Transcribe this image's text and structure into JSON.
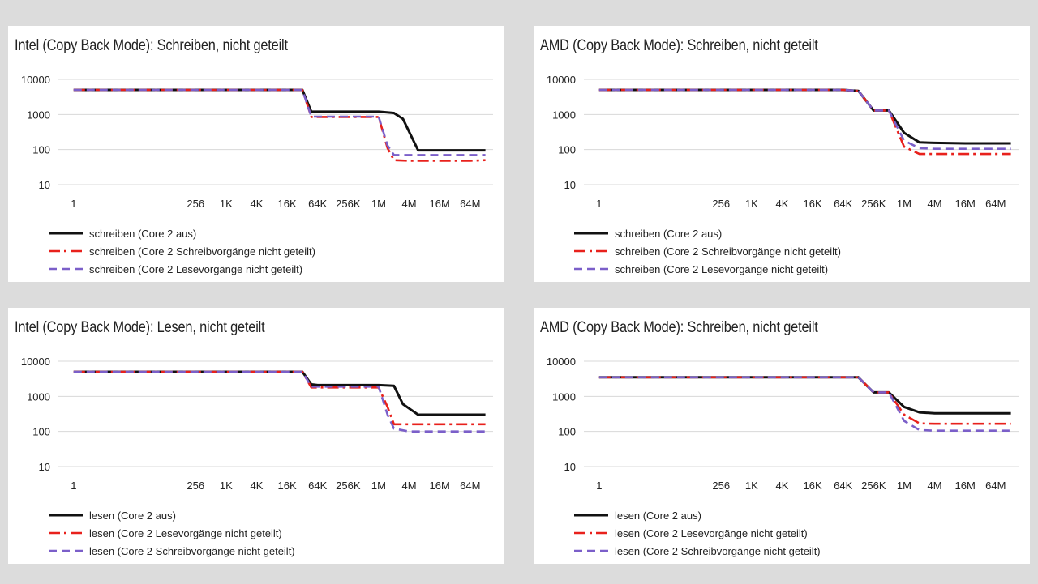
{
  "colors": {
    "series1": "#111111",
    "series2": "#e8211c",
    "series3": "#7b5fc9",
    "grid": "#d8d8d8"
  },
  "chart_data": [
    {
      "type": "line",
      "title": "Intel (Copy Back Mode): Schreiben, nicht geteilt",
      "y_scale": "log",
      "ylim": [
        10,
        10000
      ],
      "y_ticks": [
        "10000",
        "1000",
        "100",
        "10"
      ],
      "x_ticks": [
        "1",
        "256",
        "1K",
        "4K",
        "16K",
        "64K",
        "256K",
        "1M",
        "4M",
        "16M",
        "64M"
      ],
      "grid": "horizontal",
      "legend_position": "bottom",
      "series": [
        {
          "name": "schreiben (Core 2 aus)",
          "style": "solid",
          "x": [
            "1",
            "256",
            "1K",
            "4K",
            "16K",
            "32K",
            "48K",
            "64K",
            "256K",
            "1M",
            "2M",
            "3M",
            "6M",
            "16M",
            "64M",
            "128M"
          ],
          "values": [
            5000,
            5000,
            5000,
            5000,
            5000,
            5000,
            1200,
            1200,
            1200,
            1200,
            1100,
            750,
            95,
            95,
            95,
            95
          ]
        },
        {
          "name": "schreiben (Core 2 Schreibvorgänge nicht geteilt)",
          "style": "dashdot",
          "x": [
            "1",
            "256",
            "1K",
            "4K",
            "16K",
            "32K",
            "48K",
            "64K",
            "256K",
            "1M",
            "1.5M",
            "2M",
            "4M",
            "16M",
            "64M",
            "128M"
          ],
          "values": [
            5000,
            5000,
            5000,
            5000,
            5000,
            5000,
            850,
            850,
            850,
            850,
            110,
            50,
            48,
            48,
            48,
            50
          ]
        },
        {
          "name": "schreiben (Core 2 Lesevorgänge nicht geteilt)",
          "style": "dashed",
          "x": [
            "1",
            "256",
            "1K",
            "4K",
            "16K",
            "32K",
            "48K",
            "64K",
            "256K",
            "1M",
            "1.5M",
            "2M",
            "4M",
            "16M",
            "64M",
            "128M"
          ],
          "values": [
            5000,
            5000,
            5000,
            5000,
            5000,
            5000,
            870,
            870,
            870,
            870,
            130,
            70,
            70,
            70,
            70,
            70
          ]
        }
      ]
    },
    {
      "type": "line",
      "title": "AMD (Copy Back Mode): Schreiben, nicht geteilt",
      "y_scale": "log",
      "ylim": [
        10,
        10000
      ],
      "y_ticks": [
        "10000",
        "1000",
        "100",
        "10"
      ],
      "x_ticks": [
        "1",
        "256",
        "1K",
        "4K",
        "16K",
        "64K",
        "256K",
        "1M",
        "4M",
        "16M",
        "64M"
      ],
      "grid": "horizontal",
      "legend_position": "bottom",
      "series": [
        {
          "name": "schreiben (Core 2 aus)",
          "style": "solid",
          "x": [
            "1",
            "256",
            "1K",
            "4K",
            "16K",
            "64K",
            "128K",
            "256K",
            "512K",
            "1M",
            "2M",
            "4M",
            "16M",
            "64M",
            "128M"
          ],
          "values": [
            5000,
            5000,
            5000,
            5000,
            5000,
            5000,
            4700,
            1300,
            1300,
            300,
            160,
            155,
            150,
            150,
            150
          ]
        },
        {
          "name": "schreiben (Core 2 Schreibvorgänge nicht geteilt)",
          "style": "dashdot",
          "x": [
            "1",
            "256",
            "1K",
            "4K",
            "16K",
            "64K",
            "128K",
            "256K",
            "512K",
            "1M",
            "2M",
            "4M",
            "16M",
            "64M",
            "128M"
          ],
          "values": [
            5000,
            5000,
            5000,
            5000,
            5000,
            5000,
            4700,
            1300,
            1300,
            120,
            75,
            75,
            75,
            75,
            75
          ]
        },
        {
          "name": "schreiben (Core 2 Lesevorgänge nicht geteilt)",
          "style": "dashed",
          "x": [
            "1",
            "256",
            "1K",
            "4K",
            "16K",
            "64K",
            "128K",
            "256K",
            "512K",
            "1M",
            "2M",
            "4M",
            "16M",
            "64M",
            "128M"
          ],
          "values": [
            5000,
            5000,
            5000,
            5000,
            5000,
            5000,
            4700,
            1300,
            1300,
            180,
            110,
            105,
            105,
            105,
            105
          ]
        }
      ]
    },
    {
      "type": "line",
      "title": "Intel (Copy Back Mode): Lesen, nicht geteilt",
      "y_scale": "log",
      "ylim": [
        10,
        10000
      ],
      "y_ticks": [
        "10000",
        "1000",
        "100",
        "10"
      ],
      "x_ticks": [
        "1",
        "256",
        "1K",
        "4K",
        "16K",
        "64K",
        "256K",
        "1M",
        "4M",
        "16M",
        "64M"
      ],
      "grid": "horizontal",
      "legend_position": "bottom",
      "series": [
        {
          "name": "lesen (Core 2 aus)",
          "style": "solid",
          "x": [
            "1",
            "256",
            "1K",
            "4K",
            "16K",
            "32K",
            "48K",
            "64K",
            "256K",
            "1M",
            "2M",
            "3M",
            "6M",
            "16M",
            "64M",
            "128M"
          ],
          "values": [
            5000,
            5000,
            5000,
            5000,
            5000,
            5000,
            2200,
            2100,
            2100,
            2100,
            2000,
            600,
            300,
            300,
            300,
            300
          ]
        },
        {
          "name": "lesen (Core 2 Lesevorgänge nicht geteilt)",
          "style": "dashdot",
          "x": [
            "1",
            "256",
            "1K",
            "4K",
            "16K",
            "32K",
            "48K",
            "64K",
            "256K",
            "1M",
            "1.5M",
            "2M",
            "4M",
            "16M",
            "64M",
            "128M"
          ],
          "values": [
            5000,
            5000,
            5000,
            5000,
            5000,
            5000,
            1800,
            1800,
            1800,
            1800,
            500,
            160,
            160,
            160,
            160,
            160
          ]
        },
        {
          "name": "lesen (Core 2 Schreibvorgänge nicht geteilt)",
          "style": "dashed",
          "x": [
            "1",
            "256",
            "1K",
            "4K",
            "16K",
            "32K",
            "48K",
            "64K",
            "256K",
            "1M",
            "1.5M",
            "2M",
            "4M",
            "16M",
            "64M",
            "128M"
          ],
          "values": [
            5000,
            5000,
            5000,
            5000,
            5000,
            5000,
            1900,
            1900,
            1900,
            1900,
            300,
            120,
            100,
            100,
            100,
            100
          ]
        }
      ]
    },
    {
      "type": "line",
      "title": "AMD (Copy Back Mode): Schreiben, nicht geteilt",
      "y_scale": "log",
      "ylim": [
        10,
        10000
      ],
      "y_ticks": [
        "10000",
        "1000",
        "100",
        "10"
      ],
      "x_ticks": [
        "1",
        "256",
        "1K",
        "4K",
        "16K",
        "64K",
        "256K",
        "1M",
        "4M",
        "16M",
        "64M"
      ],
      "grid": "horizontal",
      "legend_position": "bottom",
      "series": [
        {
          "name": "lesen (Core 2 aus)",
          "style": "solid",
          "x": [
            "1",
            "256",
            "1K",
            "4K",
            "16K",
            "64K",
            "128K",
            "256K",
            "512K",
            "1M",
            "2M",
            "4M",
            "16M",
            "64M",
            "128M"
          ],
          "values": [
            3500,
            3500,
            3500,
            3500,
            3500,
            3500,
            3500,
            1300,
            1300,
            500,
            350,
            330,
            330,
            330,
            330
          ]
        },
        {
          "name": "lesen (Core 2 Lesevorgänge nicht geteilt)",
          "style": "dashdot",
          "x": [
            "1",
            "256",
            "1K",
            "4K",
            "16K",
            "64K",
            "128K",
            "256K",
            "512K",
            "1M",
            "2M",
            "4M",
            "16M",
            "64M",
            "128M"
          ],
          "values": [
            3500,
            3500,
            3500,
            3500,
            3500,
            3500,
            3500,
            1300,
            1300,
            300,
            170,
            165,
            165,
            165,
            165
          ]
        },
        {
          "name": "lesen (Core 2 Schreibvorgänge nicht geteilt)",
          "style": "dashed",
          "x": [
            "1",
            "256",
            "1K",
            "4K",
            "16K",
            "64K",
            "128K",
            "256K",
            "512K",
            "1M",
            "2M",
            "4M",
            "16M",
            "64M",
            "128M"
          ],
          "values": [
            3500,
            3500,
            3500,
            3500,
            3500,
            3500,
            3500,
            1300,
            1300,
            200,
            110,
            105,
            105,
            105,
            105
          ]
        }
      ]
    }
  ]
}
